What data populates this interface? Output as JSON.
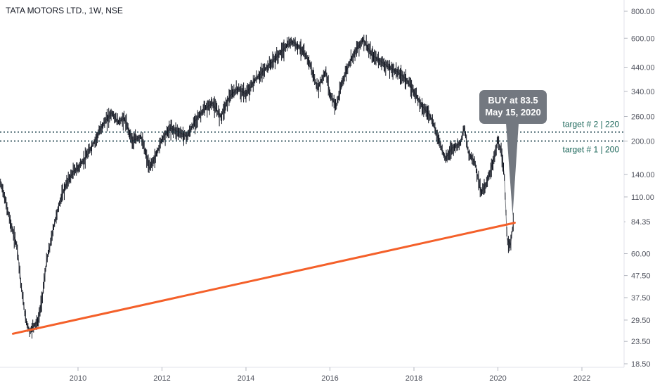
{
  "chart_data": {
    "type": "line",
    "title": "TATA MOTORS LTD., 1W, NSE",
    "y_scale": "log",
    "ylim": [
      18.5,
      800
    ],
    "xlim": [
      2008.0,
      2023.0
    ],
    "y_ticks": [
      800,
      600,
      440,
      340,
      260,
      200,
      140,
      110,
      84.35,
      60,
      47.5,
      37.5,
      29.5,
      23.5,
      18.5
    ],
    "y_tick_labels": [
      "800.00",
      "600.00",
      "440.00",
      "340.00",
      "260.00",
      "200.00",
      "140.00",
      "110.00",
      "84.35",
      "60.00",
      "47.50",
      "37.50",
      "29.50",
      "23.50",
      "18.50"
    ],
    "x_ticks": [
      2010,
      2012,
      2014,
      2016,
      2018,
      2020,
      2022
    ],
    "x_tick_labels": [
      "2010",
      "2012",
      "2014",
      "2016",
      "2018",
      "2020",
      "2022"
    ],
    "series": [
      {
        "x": [
          2008.0,
          2008.15,
          2008.3,
          2008.45,
          2008.55,
          2008.65,
          2008.75,
          2008.85,
          2008.95,
          2009.05,
          2009.15,
          2009.25,
          2009.35,
          2009.45,
          2009.6,
          2009.75,
          2009.9,
          2010.0,
          2010.2,
          2010.4,
          2010.6,
          2010.8,
          2010.95,
          2011.1,
          2011.3,
          2011.5,
          2011.7,
          2011.85,
          2012.0,
          2012.2,
          2012.4,
          2012.6,
          2012.8,
          2013.0,
          2013.2,
          2013.4,
          2013.6,
          2013.8,
          2014.0,
          2014.2,
          2014.4,
          2014.6,
          2014.8,
          2015.0,
          2015.1,
          2015.3,
          2015.5,
          2015.7,
          2015.9,
          2016.0,
          2016.15,
          2016.3,
          2016.5,
          2016.7,
          2016.8,
          2017.0,
          2017.2,
          2017.4,
          2017.6,
          2017.8,
          2018.0,
          2018.2,
          2018.4,
          2018.6,
          2018.75,
          2018.9,
          2019.1,
          2019.2,
          2019.3,
          2019.45,
          2019.6,
          2019.75,
          2019.9,
          2020.0,
          2020.08,
          2020.15,
          2020.22,
          2020.3,
          2020.37
        ],
        "values": [
          125,
          130,
          100,
          75,
          65,
          42,
          30,
          26,
          28,
          29,
          38,
          55,
          68,
          85,
          110,
          130,
          145,
          150,
          170,
          200,
          240,
          270,
          245,
          255,
          200,
          210,
          150,
          170,
          205,
          230,
          220,
          210,
          250,
          280,
          300,
          260,
          320,
          350,
          330,
          380,
          420,
          460,
          510,
          560,
          580,
          540,
          470,
          350,
          420,
          330,
          290,
          380,
          480,
          560,
          590,
          500,
          470,
          440,
          420,
          390,
          340,
          290,
          260,
          200,
          165,
          185,
          195,
          230,
          175,
          160,
          115,
          130,
          165,
          200,
          175,
          140,
          70,
          66,
          84.35
        ]
      }
    ],
    "target_levels": [
      {
        "value": 220,
        "label": "target # 2 | 220"
      },
      {
        "value": 200,
        "label": "target # 1 | 200"
      }
    ],
    "trendline": {
      "from": [
        2008.45,
        25.5
      ],
      "to": [
        2020.4,
        83.5
      ]
    },
    "callout": {
      "lines": [
        "BUY at 83.5",
        "May 15, 2020"
      ],
      "x": 2020.35,
      "value": 90
    },
    "last_price": "84.35",
    "colors": {
      "price": "#131722",
      "trendline": "#f4602a",
      "target_line": "#1a3f4a",
      "target_text": "#1a6659",
      "callout": "#737880",
      "axis_text": "#50535e"
    }
  }
}
